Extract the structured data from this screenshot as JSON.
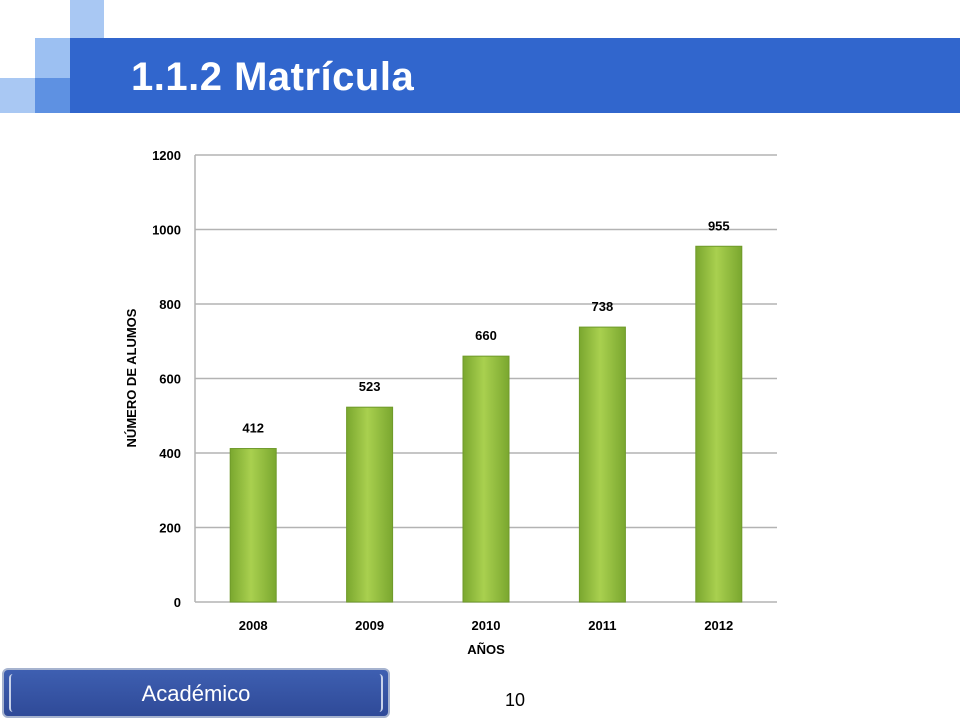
{
  "slide": {
    "title": "1.1.2 Matrícula",
    "footer_label": "Académico",
    "page_number": "10"
  },
  "colors": {
    "title_bar": "#3166cd",
    "bar_fill_light": "#a9d04f",
    "bar_fill_dark": "#7aa72f",
    "grid": "#b3b3b3"
  },
  "chart_data": {
    "type": "bar",
    "categories": [
      "2008",
      "2009",
      "2010",
      "2011",
      "2012"
    ],
    "values": [
      412,
      523,
      660,
      738,
      955
    ],
    "data_labels": [
      "412",
      "523",
      "660",
      "738",
      "955"
    ],
    "title": "",
    "xlabel": "AÑOS",
    "ylabel": "NÚMERO DE ALUMOS",
    "ylim": [
      0,
      1200
    ],
    "yticks": [
      0,
      200,
      400,
      600,
      800,
      1000,
      1200
    ],
    "grid": true,
    "legend": "none"
  }
}
